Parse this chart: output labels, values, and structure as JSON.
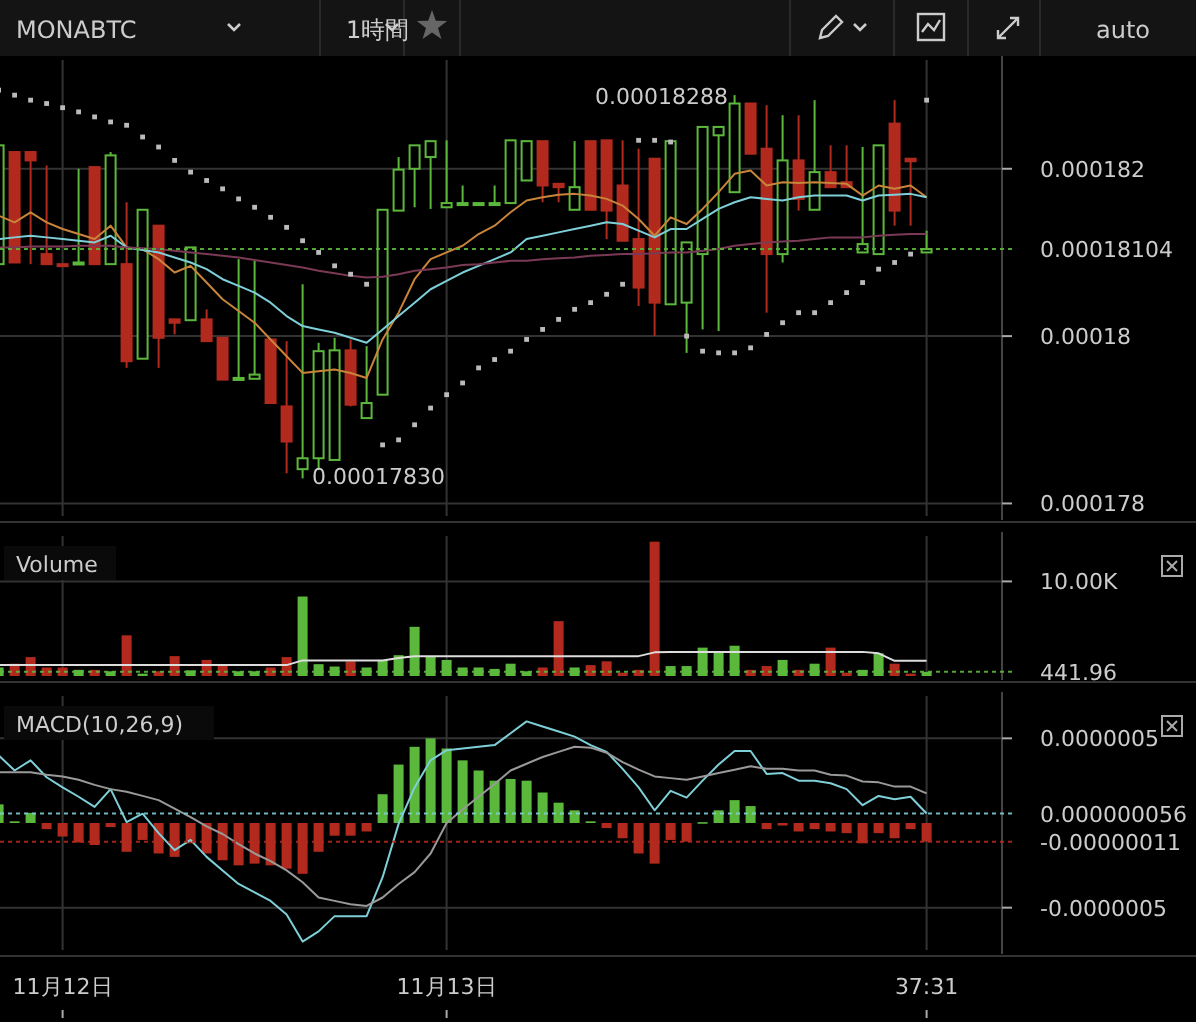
{
  "chart_data": [
    {
      "type": "candlestick",
      "title": "MONABTC",
      "tick_labels": "y",
      "grid": true,
      "annotations": [
        "0.00018288",
        "0.00017830",
        "1時間",
        "auto"
      ],
      "categories": [
        null,
        null,
        null,
        null,
        null,
        null,
        null,
        null,
        null,
        null,
        null,
        null,
        null,
        null,
        null,
        null,
        null,
        null,
        null,
        null,
        null,
        null,
        null,
        null,
        null,
        null,
        null,
        null,
        null,
        null,
        null,
        null,
        null,
        null,
        null,
        null,
        null,
        null,
        null,
        null,
        null,
        null,
        null,
        null,
        null,
        null,
        null,
        null,
        null,
        null,
        null,
        null,
        null,
        null,
        null,
        null,
        null,
        null,
        null
      ],
      "ylim": [
        0.00017785,
        0.0001833
      ],
      "yticks": [
        0.000182,
        0.00018,
        0.000178
      ],
      "ref_lines": [
        {
          "axis": "y",
          "value": 0.00018104,
          "label": "0.00018104",
          "color": "#5cb83c",
          "line_style": "dotted"
        }
      ],
      "series": [
        {
          "ohlc": [
            [
              0.00018086,
              0.00018228,
              0.00018086,
              0.00018228
            ],
            [
              0.0001822,
              0.0001822,
              0.00018088,
              0.00018088
            ],
            [
              0.0001822,
              0.0001822,
              0.00018086,
              0.0001821
            ],
            [
              0.00018098,
              0.00018204,
              0.00018086,
              0.00018086
            ],
            [
              0.00018086,
              0.00018086,
              0.00018086,
              0.00018086
            ],
            [
              0.00018086,
              0.000182,
              0.00018086,
              0.00018088
            ],
            [
              0.00018202,
              0.00018202,
              0.00018086,
              0.00018086
            ],
            [
              0.00018086,
              0.0001822,
              0.00018086,
              0.00018216
            ],
            [
              0.00018086,
              0.0001816,
              0.00017962,
              0.0001797
            ],
            [
              0.00017973,
              0.00018151,
              0.00017973,
              0.00018151
            ],
            [
              0.00018132,
              0.00018132,
              0.00017962,
              0.00017998
            ],
            [
              0.0001802,
              0.0001802,
              0.00018002,
              0.00018016
            ],
            [
              0.00018019,
              0.00018106,
              0.00018019,
              0.00018106
            ],
            [
              0.0001802,
              0.00018032,
              0.00017994,
              0.00017994
            ],
            [
              0.00017998,
              0.00017998,
              0.00017948,
              0.00017948
            ],
            [
              0.00017949,
              0.00018092,
              0.00017949,
              0.0001795
            ],
            [
              0.00017949,
              0.0001809,
              0.00017949,
              0.00017954
            ],
            [
              0.00017996,
              0.00017996,
              0.0001792,
              0.0001792
            ],
            [
              0.00017916,
              0.00017994,
              0.00017836,
              0.00017874
            ],
            [
              0.00017841,
              0.00018062,
              0.0001783,
              0.00017854
            ],
            [
              0.00017854,
              0.00017992,
              0.0001784,
              0.00017982
            ],
            [
              0.00017852,
              0.00017998,
              0.00017852,
              0.00017983
            ],
            [
              0.00017983,
              0.00017996,
              0.00017916,
              0.00017918
            ],
            [
              0.00017902,
              0.00017988,
              0.00017902,
              0.0001792
            ],
            [
              0.0001793,
              0.00018151,
              0.0001793,
              0.00018151
            ],
            [
              0.0001815,
              0.00018214,
              0.0001815,
              0.00018199
            ],
            [
              0.000182,
              0.00018228,
              0.00018154,
              0.00018228
            ],
            [
              0.00018214,
              0.00018233,
              0.00018152,
              0.00018233
            ],
            [
              0.00018154,
              0.00018234,
              0.00018154,
              0.00018159
            ],
            [
              0.00018158,
              0.0001818,
              0.00018158,
              0.00018159
            ],
            [
              0.00018158,
              0.00018159,
              0.00018158,
              0.00018159
            ],
            [
              0.00018158,
              0.0001818,
              0.00018158,
              0.00018159
            ],
            [
              0.00018159,
              0.00018234,
              0.00018159,
              0.00018234
            ],
            [
              0.00018186,
              0.00018233,
              0.00018186,
              0.00018233
            ],
            [
              0.00018233,
              0.00018233,
              0.0001816,
              0.0001818
            ],
            [
              0.00018182,
              0.00018182,
              0.0001816,
              0.00018178
            ],
            [
              0.00018151,
              0.00018233,
              0.00018151,
              0.00018178
            ],
            [
              0.00018233,
              0.00018233,
              0.00018151,
              0.00018151
            ],
            [
              0.00018234,
              0.00018234,
              0.00018116,
              0.0001815
            ],
            [
              0.0001818,
              0.00018234,
              0.00018114,
              0.00018114
            ],
            [
              0.00018116,
              0.00018224,
              0.00018036,
              0.00018058
            ],
            [
              0.00018212,
              0.00018212,
              0.00018,
              0.0001804
            ],
            [
              0.00018038,
              0.00018233,
              0.00018038,
              0.00018233
            ],
            [
              0.0001804,
              0.00018112,
              0.0001798,
              0.00018112
            ],
            [
              0.00018098,
              0.0001825,
              0.00018008,
              0.0001825
            ],
            [
              0.0001824,
              0.0001825,
              0.00018006,
              0.0001825
            ],
            [
              0.00018172,
              0.00018288,
              0.00018172,
              0.00018278
            ],
            [
              0.00018278,
              0.00018278,
              0.00018218,
              0.00018218
            ],
            [
              0.00018224,
              0.00018276,
              0.00018028,
              0.00018098
            ],
            [
              0.00018098,
              0.00018264,
              0.00018088,
              0.0001821
            ],
            [
              0.0001821,
              0.00018264,
              0.0001815,
              0.00018164
            ],
            [
              0.00018151,
              0.00018282,
              0.00018151,
              0.00018196
            ],
            [
              0.00018196,
              0.00018228,
              0.00018178,
              0.00018178
            ],
            [
              0.00018184,
              0.00018228,
              0.00018178,
              0.00018178
            ],
            [
              0.000181,
              0.00018226,
              0.000181,
              0.0001811
            ],
            [
              0.00018098,
              0.00018228,
              0.00018098,
              0.00018228
            ],
            [
              0.00018254,
              0.00018282,
              0.00018132,
              0.0001815
            ],
            [
              0.00018212,
              0.00018212,
              0.00018132,
              0.00018209
            ],
            [
              0.000181,
              0.00018126,
              0.000181,
              0.00018104
            ]
          ],
          "colors": [
            "#5cb83c",
            "#b22a1e",
            "#b22a1e",
            "#b22a1e",
            "#b22a1e",
            "#5cb83c",
            "#b22a1e",
            "#5cb83c",
            "#b22a1e",
            "#5cb83c",
            "#b22a1e",
            "#b22a1e",
            "#5cb83c",
            "#b22a1e",
            "#b22a1e",
            "#5cb83c",
            "#5cb83c",
            "#b22a1e",
            "#b22a1e",
            "#5cb83c",
            "#5cb83c",
            "#5cb83c",
            "#b22a1e",
            "#5cb83c",
            "#5cb83c",
            "#5cb83c",
            "#5cb83c",
            "#5cb83c",
            "#5cb83c",
            "#5cb83c",
            "#5cb83c",
            "#5cb83c",
            "#5cb83c",
            "#5cb83c",
            "#b22a1e",
            "#b22a1e",
            "#5cb83c",
            "#b22a1e",
            "#b22a1e",
            "#b22a1e",
            "#b22a1e",
            "#b22a1e",
            "#5cb83c",
            "#5cb83c",
            "#5cb83c",
            "#5cb83c",
            "#5cb83c",
            "#b22a1e",
            "#b22a1e",
            "#5cb83c",
            "#b22a1e",
            "#5cb83c",
            "#b22a1e",
            "#b22a1e",
            "#5cb83c",
            "#5cb83c",
            "#b22a1e",
            "#b22a1e",
            "#5cb83c"
          ]
        },
        {
          "type": "line",
          "color": "#c8843a",
          "values": [
            0.00018144,
            0.00018136,
            0.00018148,
            0.00018136,
            0.00018128,
            0.00018122,
            0.00018116,
            0.00018132,
            0.00018106,
            0.00018104,
            0.00018092,
            0.00018076,
            0.00018084,
            0.00018064,
            0.00018044,
            0.0001803,
            0.00018016,
            0.00017996,
            0.00017976,
            0.00017956,
            0.00017958,
            0.0001796,
            0.00017956,
            0.0001795,
            0.00017996,
            0.00018028,
            0.00018068,
            0.00018092,
            0.000181,
            0.00018108,
            0.00018122,
            0.00018132,
            0.00018148,
            0.00018162,
            0.00018166,
            0.00018169,
            0.0001817,
            0.00018168,
            0.00018164,
            0.00018156,
            0.0001814,
            0.0001812,
            0.00018142,
            0.00018134,
            0.00018152,
            0.00018172,
            0.00018194,
            0.00018198,
            0.0001818,
            0.00018184,
            0.00018183,
            0.00018184,
            0.00018183,
            0.00018182,
            0.00018168,
            0.0001818,
            0.00018176,
            0.0001818,
            0.00018166
          ]
        },
        {
          "type": "line",
          "color": "#7ecfd8",
          "values": [
            0.00018116,
            0.00018118,
            0.0001812,
            0.00018118,
            0.00018116,
            0.00018114,
            0.00018112,
            0.0001812,
            0.00018106,
            0.00018103,
            0.000181,
            0.00018094,
            0.00018088,
            0.0001808,
            0.00018068,
            0.0001806,
            0.00018052,
            0.0001804,
            0.00018024,
            0.00018012,
            0.00018008,
            0.00018004,
            0.00017998,
            0.00017992,
            0.00018008,
            0.00018024,
            0.0001804,
            0.00018056,
            0.00018066,
            0.00018076,
            0.00018084,
            0.00018092,
            0.000181,
            0.00018116,
            0.0001812,
            0.00018124,
            0.00018128,
            0.00018132,
            0.00018136,
            0.00018134,
            0.00018126,
            0.00018118,
            0.00018128,
            0.00018128,
            0.0001814,
            0.00018152,
            0.0001816,
            0.00018166,
            0.00018164,
            0.00018162,
            0.00018166,
            0.00018168,
            0.00018168,
            0.00018168,
            0.00018162,
            0.00018168,
            0.00018169,
            0.0001817,
            0.00018166
          ]
        },
        {
          "type": "line",
          "color": "#7a3a55",
          "values": [
            0.00018106,
            0.00018106,
            0.00018107,
            0.00018107,
            0.00018107,
            0.00018108,
            0.00018108,
            0.00018108,
            0.00018106,
            0.00018105,
            0.00018104,
            0.00018102,
            0.000181,
            0.00018098,
            0.00018096,
            0.00018094,
            0.00018091,
            0.00018088,
            0.00018085,
            0.00018082,
            0.00018078,
            0.00018075,
            0.00018072,
            0.0001807,
            0.00018071,
            0.00018074,
            0.00018078,
            0.0001808,
            0.00018082,
            0.00018085,
            0.00018086,
            0.00018088,
            0.0001809,
            0.0001809,
            0.00018092,
            0.00018093,
            0.00018094,
            0.00018096,
            0.00018097,
            0.00018098,
            0.00018098,
            0.00018099,
            0.000181,
            0.000181,
            0.00018102,
            0.00018104,
            0.00018108,
            0.0001811,
            0.00018112,
            0.00018113,
            0.00018114,
            0.00018116,
            0.00018118,
            0.00018118,
            0.00018118,
            0.0001812,
            0.00018121,
            0.00018122,
            0.00018122
          ]
        },
        {
          "type": "scatter",
          "color": "#bbbbbb",
          "marker": "square",
          "values": [
            0.00018294,
            0.00018288,
            0.00018282,
            0.00018278,
            0.00018273,
            0.00018268,
            0.00018262,
            0.00018256,
            0.00018252,
            0.00018238,
            0.00018226,
            0.0001821,
            0.00018196,
            0.00018186,
            0.00018176,
            0.00018164,
            0.00018154,
            0.00018142,
            0.0001813,
            0.00018114,
            0.000181,
            0.00018084,
            0.00018074,
            0.00018062,
            0.0001787,
            0.00017876,
            0.00017894,
            0.00017914,
            0.0001793,
            0.00017944,
            0.00017962,
            0.00017972,
            0.00017982,
            0.00017996,
            0.00018008,
            0.0001802,
            0.00018032,
            0.0001804,
            0.0001805,
            0.00018062,
            0.00018234,
            0.00018234,
            0.00018232,
            0.00018,
            0.00017982,
            0.0001798,
            0.0001798,
            0.00017986,
            0.00018002,
            0.00018016,
            0.00018028,
            0.00018028,
            0.0001804,
            0.00018052,
            0.00018064,
            0.0001808,
            0.00018088,
            0.00018098,
            0.00018282
          ]
        }
      ]
    },
    {
      "type": "bar",
      "title": "Volume",
      "tick_labels": "y",
      "grid": true,
      "categories": [
        null,
        null,
        null,
        null,
        null,
        null,
        null,
        null,
        null,
        null,
        null,
        null,
        null,
        null,
        null,
        null,
        null,
        null,
        null,
        null,
        null,
        null,
        null,
        null,
        null,
        null,
        null,
        null,
        null,
        null,
        null,
        null,
        null,
        null,
        null,
        null,
        null,
        null,
        null,
        null,
        null,
        null,
        null,
        null,
        null,
        null,
        null,
        null,
        null,
        null,
        null,
        null,
        null,
        null,
        null,
        null,
        null,
        null,
        null
      ],
      "ylim": [
        0,
        14800
      ],
      "yticks": [
        {
          "value": 10000,
          "label": "10.00K"
        }
      ],
      "ref_lines": [
        {
          "axis": "y",
          "value": 441.96,
          "label": "441.96",
          "color": "#5cb83c",
          "line_style": "dotted"
        }
      ],
      "series": [
        {
          "values": [
            900,
            1300,
            2000,
            900,
            900,
            650,
            650,
            500,
            4300,
            250,
            500,
            2100,
            600,
            1700,
            1150,
            500,
            500,
            900,
            2000,
            8400,
            1250,
            1000,
            1550,
            900,
            1700,
            2200,
            5200,
            2100,
            1700,
            900,
            900,
            750,
            1300,
            500,
            900,
            5800,
            900,
            1150,
            1550,
            350,
            650,
            14200,
            1050,
            1050,
            3000,
            2600,
            3200,
            650,
            1050,
            1700,
            650,
            1300,
            3000,
            350,
            650,
            2400,
            1300,
            250,
            441.96
          ],
          "colors": [
            "#5cb83c",
            "#b22a1e",
            "#b22a1e",
            "#b22a1e",
            "#b22a1e",
            "#5cb83c",
            "#b22a1e",
            "#5cb83c",
            "#b22a1e",
            "#5cb83c",
            "#b22a1e",
            "#b22a1e",
            "#5cb83c",
            "#b22a1e",
            "#b22a1e",
            "#5cb83c",
            "#5cb83c",
            "#b22a1e",
            "#b22a1e",
            "#5cb83c",
            "#5cb83c",
            "#5cb83c",
            "#b22a1e",
            "#5cb83c",
            "#5cb83c",
            "#5cb83c",
            "#5cb83c",
            "#5cb83c",
            "#5cb83c",
            "#5cb83c",
            "#5cb83c",
            "#5cb83c",
            "#5cb83c",
            "#5cb83c",
            "#b22a1e",
            "#b22a1e",
            "#5cb83c",
            "#b22a1e",
            "#b22a1e",
            "#b22a1e",
            "#b22a1e",
            "#b22a1e",
            "#5cb83c",
            "#5cb83c",
            "#5cb83c",
            "#5cb83c",
            "#5cb83c",
            "#b22a1e",
            "#b22a1e",
            "#5cb83c",
            "#b22a1e",
            "#5cb83c",
            "#b22a1e",
            "#b22a1e",
            "#5cb83c",
            "#5cb83c",
            "#b22a1e",
            "#b22a1e",
            "#5cb83c"
          ]
        },
        {
          "type": "line",
          "color": "#dddddd",
          "values": [
            1150,
            1150,
            1150,
            1150,
            1150,
            1150,
            1150,
            1150,
            1150,
            1150,
            1150,
            1150,
            1150,
            1150,
            1150,
            1150,
            1150,
            1150,
            1150,
            1650,
            1650,
            1650,
            1650,
            1650,
            1650,
            1900,
            2100,
            2100,
            2100,
            2100,
            2100,
            2100,
            2100,
            2100,
            2100,
            2100,
            2100,
            2100,
            2100,
            2100,
            2100,
            2500,
            2550,
            2550,
            2550,
            2550,
            2550,
            2550,
            2550,
            2550,
            2550,
            2550,
            2550,
            2550,
            2550,
            2400,
            1600,
            1600,
            1600
          ]
        }
      ]
    },
    {
      "type": "bar",
      "title": "MACD(10,26,9)",
      "grid": true,
      "categories": [
        null,
        null,
        null,
        null,
        "11月12日",
        null,
        null,
        null,
        null,
        null,
        null,
        null,
        null,
        null,
        null,
        null,
        null,
        null,
        null,
        null,
        null,
        null,
        null,
        null,
        null,
        null,
        null,
        null,
        "11月13日",
        null,
        null,
        null,
        null,
        null,
        null,
        null,
        null,
        null,
        null,
        null,
        null,
        null,
        null,
        null,
        null,
        null,
        null,
        null,
        null,
        null,
        null,
        null,
        null,
        null,
        null,
        null,
        null,
        null,
        "37:31"
      ],
      "ylim": [
        -7.5e-07,
        7.5e-07
      ],
      "yticks": [
        {
          "value": 5e-07,
          "label": "0.0000005"
        },
        {
          "value": -5e-07,
          "label": "-0.0000005"
        }
      ],
      "ref_lines": [
        {
          "axis": "y",
          "value": 5.6e-08,
          "label": "0.000000056",
          "color": "#7ecfd8",
          "line_style": "dotted"
        },
        {
          "axis": "y",
          "value": -1.1e-07,
          "label": "-0.00000011",
          "color": "#b22a1e",
          "line_style": "dotted"
        }
      ],
      "series": [
        {
          "values": [
            1.1e-07,
            1e-08,
            6e-08,
            -3.6e-08,
            -8e-08,
            -1.15e-07,
            -1.3e-07,
            -2.4e-08,
            -1.7e-07,
            -1e-07,
            -1.8e-07,
            -2e-07,
            -1.2e-07,
            -1.8e-07,
            -2.2e-07,
            -2.5e-07,
            -2.4e-07,
            -2.5e-07,
            -2.7e-07,
            -3e-07,
            -1.7e-07,
            -7.5e-08,
            -7.5e-08,
            -5e-08,
            1.7e-07,
            3.45e-07,
            4.5e-07,
            5e-07,
            4.4e-07,
            3.7e-07,
            3.1e-07,
            2.5e-07,
            2.6e-07,
            2.5e-07,
            1.8e-07,
            1.2e-07,
            7.5e-08,
            1e-08,
            -3e-08,
            -9e-08,
            -1.8e-07,
            -2.4e-07,
            -1e-07,
            -1.1e-07,
            5e-09,
            7.5e-08,
            1.35e-07,
            1e-07,
            -3.6e-08,
            -1.5e-08,
            -5e-08,
            -3.6e-08,
            -5e-08,
            -6e-08,
            -1.2e-07,
            -6e-08,
            -9e-08,
            -3.6e-08,
            -1.1e-07
          ],
          "colors": [
            "#5cb83c",
            "#5cb83c",
            "#5cb83c",
            "#b22a1e",
            "#b22a1e",
            "#b22a1e",
            "#b22a1e",
            "#b22a1e",
            "#b22a1e",
            "#b22a1e",
            "#b22a1e",
            "#b22a1e",
            "#b22a1e",
            "#b22a1e",
            "#b22a1e",
            "#b22a1e",
            "#b22a1e",
            "#b22a1e",
            "#b22a1e",
            "#b22a1e",
            "#b22a1e",
            "#b22a1e",
            "#b22a1e",
            "#b22a1e",
            "#5cb83c",
            "#5cb83c",
            "#5cb83c",
            "#5cb83c",
            "#5cb83c",
            "#5cb83c",
            "#5cb83c",
            "#5cb83c",
            "#5cb83c",
            "#5cb83c",
            "#5cb83c",
            "#5cb83c",
            "#5cb83c",
            "#5cb83c",
            "#b22a1e",
            "#b22a1e",
            "#b22a1e",
            "#b22a1e",
            "#b22a1e",
            "#b22a1e",
            "#5cb83c",
            "#5cb83c",
            "#5cb83c",
            "#5cb83c",
            "#b22a1e",
            "#b22a1e",
            "#b22a1e",
            "#b22a1e",
            "#b22a1e",
            "#b22a1e",
            "#b22a1e",
            "#b22a1e",
            "#b22a1e",
            "#b22a1e",
            "#b22a1e"
          ]
        },
        {
          "type": "line",
          "color": "#7ecfd8",
          "values": [
            4e-07,
            3.1e-07,
            3.7e-07,
            2.7e-07,
            2.1e-07,
            1.55e-07,
            9.5e-08,
            2e-07,
            5e-09,
            5.5e-08,
            -6e-08,
            -1.6e-07,
            -1e-07,
            -2e-07,
            -2.8e-07,
            -3.6e-07,
            -4.1e-07,
            -4.6e-07,
            -5.4e-07,
            -7e-07,
            -6.4e-07,
            -5.5e-07,
            -5.5e-07,
            -5.5e-07,
            -3.2e-07,
            -5e-09,
            2.1e-07,
            3.7e-07,
            4.3e-07,
            4.4e-07,
            4.5e-07,
            4.6e-07,
            5.3e-07,
            6e-07,
            5.7e-07,
            5.4e-07,
            5.1e-07,
            4.6e-07,
            4.2e-07,
            3.2e-07,
            2.1e-07,
            7.5e-08,
            1.9e-07,
            1.5e-07,
            2.5e-07,
            3.45e-07,
            4.25e-07,
            4.25e-07,
            2.9e-07,
            2.95e-07,
            2.5e-07,
            2.5e-07,
            2.35e-07,
            2e-07,
            1.05e-07,
            1.6e-07,
            1.4e-07,
            1.55e-07,
            5.6e-08
          ]
        },
        {
          "type": "line",
          "color": "#999999",
          "values": [
            3e-07,
            3e-07,
            3e-07,
            2.85e-07,
            2.75e-07,
            2.55e-07,
            2.25e-07,
            2e-07,
            1.85e-07,
            1.6e-07,
            1.35e-07,
            8.5e-08,
            3.5e-08,
            -2e-08,
            -6.5e-08,
            -1.25e-07,
            -1.8e-07,
            -2.25e-07,
            -2.8e-07,
            -3.5e-07,
            -4.4e-07,
            -4.6e-07,
            -4.8e-07,
            -4.9e-07,
            -4.4e-07,
            -3.6e-07,
            -2.9e-07,
            -1.8e-07,
            0,
            8e-08,
            1.55e-07,
            2.3e-07,
            3.1e-07,
            3.5e-07,
            3.9e-07,
            4.2e-07,
            4.5e-07,
            4.45e-07,
            4.15e-07,
            3.6e-07,
            3.15e-07,
            2.75e-07,
            2.65e-07,
            2.55e-07,
            2.75e-07,
            2.95e-07,
            3.15e-07,
            3.35e-07,
            3.2e-07,
            3.2e-07,
            3.1e-07,
            3.1e-07,
            2.85e-07,
            2.8e-07,
            2.45e-07,
            2.4e-07,
            2.15e-07,
            2.15e-07,
            1.75e-07
          ]
        }
      ]
    }
  ]
}
